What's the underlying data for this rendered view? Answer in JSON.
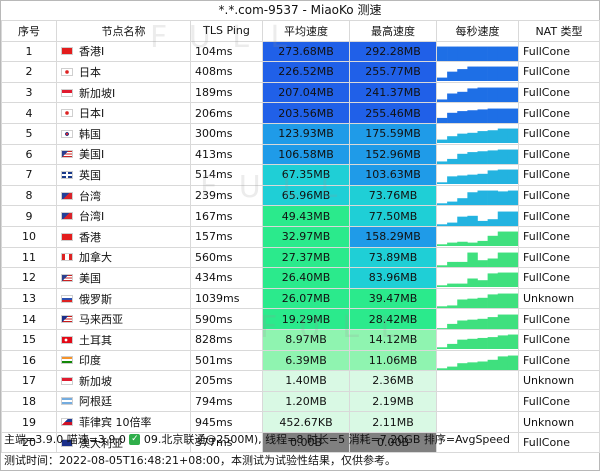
{
  "title": "*.*.com-9537 - MiaoKo 测速",
  "columns": {
    "idx": "序号",
    "name": "节点名称",
    "ping": "TLS Ping",
    "avg": "平均速度",
    "max": "最高速度",
    "per_sec": "每秒速度",
    "nat": "NAT 类型"
  },
  "colors": {
    "speed_ramp": [
      "#2060e8",
      "#1f9be8",
      "#1fcfd6",
      "#2bea8c",
      "#8ff4b0",
      "#d9f9e4"
    ],
    "zero": "#808080",
    "spark_fast": "#1e6fe6",
    "spark_mid": "#23b3e0",
    "spark_slow": "#3fe07e"
  },
  "rows": [
    {
      "idx": "1",
      "flag": "hk",
      "name": "香港I",
      "ping": "104ms",
      "avg": "273.68MB",
      "max": "292.28MB",
      "nat": "FullCone",
      "avg_val": 273.68,
      "max_val": 292.28,
      "spark": [
        0.85,
        0.85,
        0.85,
        0.85,
        0.85,
        0.85,
        0.85,
        0.85
      ]
    },
    {
      "idx": "2",
      "flag": "jp",
      "name": "日本",
      "ping": "408ms",
      "avg": "226.52MB",
      "max": "255.77MB",
      "nat": "FullCone",
      "avg_val": 226.52,
      "max_val": 255.77,
      "spark": [
        0.2,
        0.55,
        0.7,
        0.85,
        0.85,
        0.85,
        0.85,
        0.85
      ]
    },
    {
      "idx": "3",
      "flag": "sg",
      "name": "新加坡I",
      "ping": "189ms",
      "avg": "207.04MB",
      "max": "241.37MB",
      "nat": "FullCone",
      "avg_val": 207.04,
      "max_val": 241.37,
      "spark": [
        0.15,
        0.5,
        0.6,
        0.8,
        0.85,
        0.85,
        0.85,
        0.85
      ]
    },
    {
      "idx": "4",
      "flag": "jp",
      "name": "日本I",
      "ping": "206ms",
      "avg": "203.56MB",
      "max": "255.46MB",
      "nat": "FullCone",
      "avg_val": 203.56,
      "max_val": 255.46,
      "spark": [
        0.3,
        0.6,
        0.7,
        0.75,
        0.8,
        0.85,
        0.85,
        0.85
      ]
    },
    {
      "idx": "5",
      "flag": "kr",
      "name": "韩国",
      "ping": "300ms",
      "avg": "123.93MB",
      "max": "175.59MB",
      "nat": "FullCone",
      "avg_val": 123.93,
      "max_val": 175.59,
      "spark": [
        0.2,
        0.4,
        0.55,
        0.6,
        0.7,
        0.75,
        0.85,
        0.85
      ]
    },
    {
      "idx": "6",
      "flag": "us",
      "name": "美国I",
      "ping": "413ms",
      "avg": "106.58MB",
      "max": "152.96MB",
      "nat": "FullCone",
      "avg_val": 106.58,
      "max_val": 152.96,
      "spark": [
        0.15,
        0.3,
        0.6,
        0.7,
        0.75,
        0.8,
        0.85,
        0.85
      ]
    },
    {
      "idx": "7",
      "flag": "gb",
      "name": "英国",
      "ping": "514ms",
      "avg": "67.35MB",
      "max": "103.63MB",
      "nat": "FullCone",
      "avg_val": 67.35,
      "max_val": 103.63,
      "spark": [
        0.1,
        0.45,
        0.5,
        0.55,
        0.6,
        0.8,
        0.85,
        0.85
      ]
    },
    {
      "idx": "8",
      "flag": "tw",
      "name": "台湾",
      "ping": "239ms",
      "avg": "65.96MB",
      "max": "73.76MB",
      "nat": "FullCone",
      "avg_val": 65.96,
      "max_val": 73.76,
      "spark": [
        0.1,
        0.2,
        0.4,
        0.75,
        0.85,
        0.85,
        0.8,
        0.85
      ]
    },
    {
      "idx": "9",
      "flag": "tw",
      "name": "台湾I",
      "ping": "167ms",
      "avg": "49.43MB",
      "max": "77.50MB",
      "nat": "FullCone",
      "avg_val": 49.43,
      "max_val": 77.5,
      "spark": [
        0.1,
        0.2,
        0.55,
        0.6,
        0.3,
        0.4,
        0.85,
        0.85
      ]
    },
    {
      "idx": "10",
      "flag": "hk",
      "name": "香港",
      "ping": "157ms",
      "avg": "32.97MB",
      "max": "158.29MB",
      "nat": "FullCone",
      "avg_val": 32.97,
      "max_val": 158.29,
      "spark": [
        0.1,
        0.2,
        0.25,
        0.2,
        0.3,
        0.6,
        0.85,
        0.85
      ]
    },
    {
      "idx": "11",
      "flag": "ca",
      "name": "加拿大",
      "ping": "560ms",
      "avg": "27.37MB",
      "max": "73.89MB",
      "nat": "FullCone",
      "avg_val": 27.37,
      "max_val": 73.89,
      "spark": [
        0.1,
        0.3,
        0.3,
        0.85,
        0.4,
        0.5,
        0.85,
        0.85
      ]
    },
    {
      "idx": "12",
      "flag": "us",
      "name": "美国",
      "ping": "434ms",
      "avg": "26.40MB",
      "max": "83.96MB",
      "nat": "FullCone",
      "avg_val": 26.4,
      "max_val": 83.96,
      "spark": [
        0.1,
        0.2,
        0.2,
        0.5,
        0.4,
        0.8,
        0.85,
        0.85
      ]
    },
    {
      "idx": "13",
      "flag": "ru",
      "name": "俄罗斯",
      "ping": "1039ms",
      "avg": "26.07MB",
      "max": "39.47MB",
      "nat": "Unknown",
      "avg_val": 26.07,
      "max_val": 39.47,
      "spark": [
        0.1,
        0.15,
        0.5,
        0.55,
        0.6,
        0.8,
        0.85,
        0.85
      ]
    },
    {
      "idx": "14",
      "flag": "my",
      "name": "马来西亚",
      "ping": "590ms",
      "avg": "19.29MB",
      "max": "28.42MB",
      "nat": "FullCone",
      "avg_val": 19.29,
      "max_val": 28.42,
      "spark": [
        0.05,
        0.3,
        0.5,
        0.55,
        0.6,
        0.7,
        0.85,
        0.85
      ]
    },
    {
      "idx": "15",
      "flag": "tr",
      "name": "土耳其",
      "ping": "828ms",
      "avg": "8.97MB",
      "max": "14.12MB",
      "nat": "FullCone",
      "avg_val": 8.97,
      "max_val": 14.12,
      "spark": [
        0.1,
        0.3,
        0.55,
        0.6,
        0.65,
        0.7,
        0.8,
        0.85
      ]
    },
    {
      "idx": "16",
      "flag": "in",
      "name": "印度",
      "ping": "501ms",
      "avg": "6.39MB",
      "max": "11.06MB",
      "nat": "FullCone",
      "avg_val": 6.39,
      "max_val": 11.06,
      "spark": [
        0.1,
        0.2,
        0.4,
        0.45,
        0.5,
        0.6,
        0.8,
        0.85
      ]
    },
    {
      "idx": "17",
      "flag": "sg",
      "name": "新加坡",
      "ping": "205ms",
      "avg": "1.40MB",
      "max": "2.36MB",
      "nat": "Unknown",
      "avg_val": 1.4,
      "max_val": 2.36,
      "spark": [
        0,
        0,
        0,
        0,
        0,
        0,
        0,
        0
      ]
    },
    {
      "idx": "18",
      "flag": "ar",
      "name": "阿根廷",
      "ping": "794ms",
      "avg": "1.20MB",
      "max": "2.19MB",
      "nat": "FullCone",
      "avg_val": 1.2,
      "max_val": 2.19,
      "spark": [
        0,
        0,
        0,
        0,
        0,
        0,
        0,
        0
      ]
    },
    {
      "idx": "19",
      "flag": "ph",
      "name": "菲律宾 10倍率",
      "ping": "945ms",
      "avg": "452.67KB",
      "max": "2.11MB",
      "nat": "Unknown",
      "avg_val": 0.44,
      "max_val": 2.11,
      "spark": [
        0,
        0,
        0,
        0,
        0,
        0,
        0,
        0
      ]
    },
    {
      "idx": "20",
      "flag": "au",
      "name": "澳大利亚",
      "ping": "377ms",
      "avg": "0.00B",
      "max": "0.00B",
      "nat": "FullCone",
      "avg_val": 0,
      "max_val": 0,
      "spark": [
        0,
        0,
        0,
        0,
        0,
        0,
        0,
        0
      ]
    }
  ],
  "footer": {
    "line1_pre": "主端=3.9.0 喵速=3.9.0 ",
    "check": "✓",
    "line1_post": " 09.北京联通@2500M), 线程=8 时长=5 消耗=7.20GB 排序=AvgSpeed",
    "line2": "测试时间：2022-08-05T16:48:21+08:00，本测试为试验性结果，仅供参考。"
  }
}
